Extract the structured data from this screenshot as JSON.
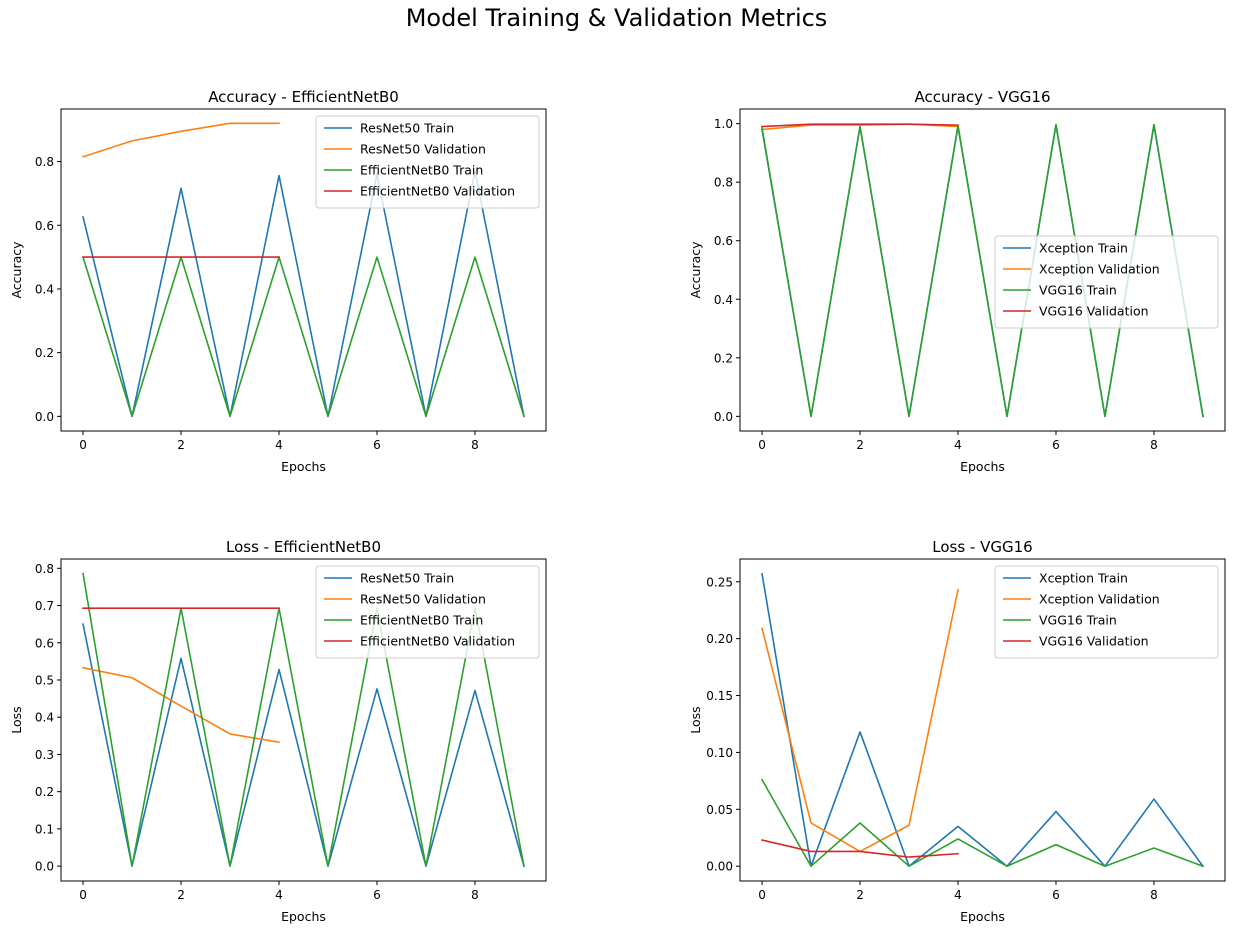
{
  "figure": {
    "suptitle": "Model Training & Validation Metrics"
  },
  "charts": [
    {
      "type": "line",
      "title": "Accuracy - EfficientNetB0",
      "xlabel": "Epochs",
      "ylabel": "Accuracy",
      "xlim": [
        -0.45,
        9.45
      ],
      "ylim": [
        -0.046,
        0.965
      ],
      "xticks": [
        0,
        2,
        4,
        6,
        8
      ],
      "yticks": [
        0.0,
        0.2,
        0.4,
        0.6,
        0.8
      ],
      "ytick_decimals": 1,
      "legend": "top-right",
      "series": [
        {
          "name": "ResNet50 Train",
          "color": "#1f77b4",
          "x": [
            0,
            1,
            2,
            3,
            4,
            5,
            6,
            7,
            8,
            9
          ],
          "y": [
            0.626,
            0.0,
            0.716,
            0.0,
            0.756,
            0.0,
            0.76,
            0.0,
            0.77,
            0.0
          ]
        },
        {
          "name": "ResNet50 Validation",
          "color": "#ff7f0e",
          "x": [
            0,
            1,
            2,
            3,
            4
          ],
          "y": [
            0.815,
            0.865,
            0.895,
            0.92,
            0.92
          ]
        },
        {
          "name": "EfficientNetB0 Train",
          "color": "#2ca02c",
          "x": [
            0,
            1,
            2,
            3,
            4,
            5,
            6,
            7,
            8,
            9
          ],
          "y": [
            0.5,
            0.0,
            0.5,
            0.0,
            0.5,
            0.0,
            0.5,
            0.0,
            0.5,
            0.0
          ]
        },
        {
          "name": "EfficientNetB0 Validation",
          "color": "#d62728",
          "x": [
            0,
            1,
            2,
            3,
            4
          ],
          "y": [
            0.5,
            0.5,
            0.5,
            0.5,
            0.5
          ]
        }
      ]
    },
    {
      "type": "line",
      "title": "Accuracy - VGG16",
      "xlabel": "Epochs",
      "ylabel": "Accuracy",
      "xlim": [
        -0.45,
        9.45
      ],
      "ylim": [
        -0.05,
        1.05
      ],
      "xticks": [
        0,
        2,
        4,
        6,
        8
      ],
      "yticks": [
        0.0,
        0.2,
        0.4,
        0.6,
        0.8,
        1.0
      ],
      "ytick_decimals": 1,
      "legend": "center-right",
      "series": [
        {
          "name": "Xception Train",
          "color": "#1f77b4",
          "x": [
            0,
            1,
            2,
            3,
            4,
            5,
            6,
            7,
            8,
            9
          ],
          "y": [
            0.98,
            0.0,
            0.99,
            0.0,
            0.99,
            0.0,
            0.995,
            0.0,
            0.995,
            0.0
          ]
        },
        {
          "name": "Xception Validation",
          "color": "#ff7f0e",
          "x": [
            0,
            1,
            2,
            3,
            4
          ],
          "y": [
            0.98,
            0.995,
            0.995,
            0.998,
            0.99
          ]
        },
        {
          "name": "VGG16 Train",
          "color": "#2ca02c",
          "x": [
            0,
            1,
            2,
            3,
            4,
            5,
            6,
            7,
            8,
            9
          ],
          "y": [
            0.985,
            0.0,
            0.99,
            0.0,
            0.993,
            0.0,
            0.997,
            0.0,
            0.997,
            0.0
          ]
        },
        {
          "name": "VGG16 Validation",
          "color": "#d62728",
          "x": [
            0,
            1,
            2,
            3,
            4
          ],
          "y": [
            0.99,
            0.998,
            0.998,
            0.998,
            0.995
          ]
        }
      ]
    },
    {
      "type": "line",
      "title": "Loss - EfficientNetB0",
      "xlabel": "Epochs",
      "ylabel": "Loss",
      "xlim": [
        -0.45,
        9.45
      ],
      "ylim": [
        -0.04,
        0.825
      ],
      "xticks": [
        0,
        2,
        4,
        6,
        8
      ],
      "yticks": [
        0.0,
        0.1,
        0.2,
        0.3,
        0.4,
        0.5,
        0.6,
        0.7,
        0.8
      ],
      "ytick_decimals": 1,
      "legend": "top-right",
      "series": [
        {
          "name": "ResNet50 Train",
          "color": "#1f77b4",
          "x": [
            0,
            1,
            2,
            3,
            4,
            5,
            6,
            7,
            8,
            9
          ],
          "y": [
            0.65,
            0.0,
            0.558,
            0.0,
            0.528,
            0.0,
            0.476,
            0.0,
            0.472,
            0.0
          ]
        },
        {
          "name": "ResNet50 Validation",
          "color": "#ff7f0e",
          "x": [
            0,
            1,
            2,
            3,
            4
          ],
          "y": [
            0.533,
            0.506,
            0.43,
            0.355,
            0.333
          ]
        },
        {
          "name": "EfficientNetB0 Train",
          "color": "#2ca02c",
          "x": [
            0,
            1,
            2,
            3,
            4,
            5,
            6,
            7,
            8,
            9
          ],
          "y": [
            0.786,
            0.0,
            0.693,
            0.0,
            0.693,
            0.0,
            0.693,
            0.0,
            0.693,
            0.0
          ]
        },
        {
          "name": "EfficientNetB0 Validation",
          "color": "#d62728",
          "x": [
            0,
            1,
            2,
            3,
            4
          ],
          "y": [
            0.693,
            0.693,
            0.693,
            0.693,
            0.693
          ]
        }
      ]
    },
    {
      "type": "line",
      "title": "Loss - VGG16",
      "xlabel": "Epochs",
      "ylabel": "Loss",
      "xlim": [
        -0.45,
        9.45
      ],
      "ylim": [
        -0.013,
        0.27
      ],
      "xticks": [
        0,
        2,
        4,
        6,
        8
      ],
      "yticks": [
        0.0,
        0.05,
        0.1,
        0.15,
        0.2,
        0.25
      ],
      "ytick_decimals": 2,
      "legend": "top-right",
      "series": [
        {
          "name": "Xception Train",
          "color": "#1f77b4",
          "x": [
            0,
            1,
            2,
            3,
            4,
            5,
            6,
            7,
            8,
            9
          ],
          "y": [
            0.257,
            0.0,
            0.118,
            0.0,
            0.035,
            0.0,
            0.048,
            0.0,
            0.059,
            0.0
          ]
        },
        {
          "name": "Xception Validation",
          "color": "#ff7f0e",
          "x": [
            0,
            1,
            2,
            3,
            4
          ],
          "y": [
            0.209,
            0.038,
            0.013,
            0.036,
            0.243
          ]
        },
        {
          "name": "VGG16 Train",
          "color": "#2ca02c",
          "x": [
            0,
            1,
            2,
            3,
            4,
            5,
            6,
            7,
            8,
            9
          ],
          "y": [
            0.076,
            0.0,
            0.038,
            0.0,
            0.024,
            0.0,
            0.019,
            0.0,
            0.016,
            0.0
          ]
        },
        {
          "name": "VGG16 Validation",
          "color": "#d62728",
          "x": [
            0,
            1,
            2,
            3,
            4
          ],
          "y": [
            0.023,
            0.013,
            0.013,
            0.008,
            0.011
          ]
        }
      ]
    }
  ]
}
